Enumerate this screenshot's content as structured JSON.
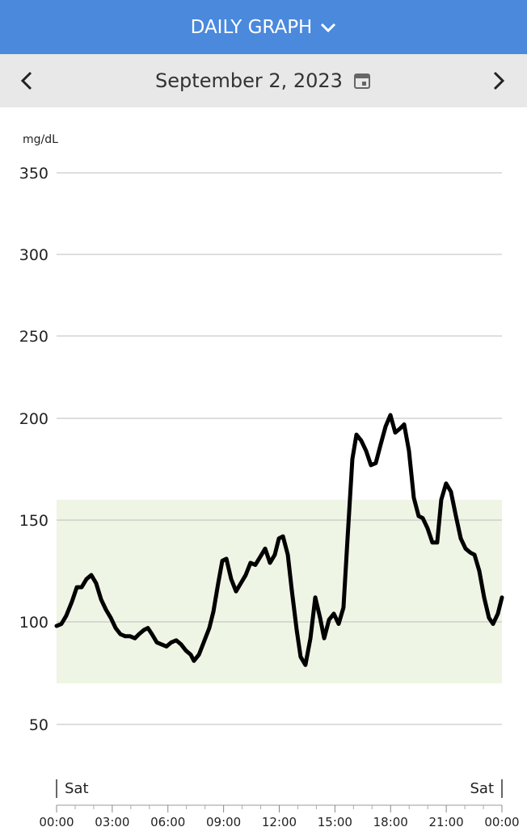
{
  "header": {
    "title": "DAILY GRAPH",
    "date": "September 2, 2023"
  },
  "chart_data": {
    "type": "line",
    "y_label": "mg/dL",
    "day_labels": [
      "Sat",
      "Sat"
    ],
    "target_range": [
      70,
      160
    ],
    "target_color": "#eef5e4",
    "grid": true,
    "ylim": [
      50,
      350
    ],
    "yticks": [
      50,
      100,
      150,
      200,
      250,
      300,
      350
    ],
    "xlim": [
      0,
      24
    ],
    "xticks": [
      {
        "value": 0,
        "label": "00:00"
      },
      {
        "value": 3,
        "label": "03:00"
      },
      {
        "value": 6,
        "label": "06:00"
      },
      {
        "value": 9,
        "label": "09:00"
      },
      {
        "value": 12,
        "label": "12:00"
      },
      {
        "value": 15,
        "label": "15:00"
      },
      {
        "value": 18,
        "label": "18:00"
      },
      {
        "value": 21,
        "label": "21:00"
      },
      {
        "value": 24,
        "label": "00:00"
      }
    ],
    "x": [
      0,
      0.26,
      0.52,
      0.83,
      1.09,
      1.35,
      1.61,
      1.87,
      2.13,
      2.4,
      2.66,
      2.92,
      3.18,
      3.44,
      3.7,
      3.96,
      4.22,
      4.44,
      4.7,
      4.92,
      5.14,
      5.4,
      5.66,
      5.92,
      6.18,
      6.45,
      6.71,
      6.97,
      7.23,
      7.4,
      7.67,
      7.93,
      8.23,
      8.45,
      8.71,
      8.93,
      9.15,
      9.41,
      9.67,
      9.93,
      10.19,
      10.45,
      10.71,
      10.98,
      11.24,
      11.5,
      11.76,
      11.98,
      12.2,
      12.46,
      12.67,
      12.94,
      13.15,
      13.41,
      13.68,
      13.94,
      14.2,
      14.42,
      14.68,
      14.94,
      15.2,
      15.46,
      15.68,
      15.94,
      16.16,
      16.42,
      16.68,
      16.94,
      17.2,
      17.46,
      17.73,
      17.99,
      18.25,
      18.51,
      18.73,
      18.99,
      19.25,
      19.51,
      19.73,
      19.99,
      20.25,
      20.51,
      20.73,
      20.99,
      21.25,
      21.52,
      21.78,
      22.04,
      22.3,
      22.52,
      22.78,
      23.04,
      23.3,
      23.52,
      23.78,
      24
    ],
    "series": [
      {
        "color": "#000000",
        "values": [
          98,
          99,
          103,
          110,
          117,
          117,
          121,
          123,
          119,
          111,
          106,
          102,
          97,
          94,
          93,
          93,
          92,
          94,
          96,
          97,
          94,
          90,
          89,
          88,
          90,
          91,
          89,
          86,
          84,
          81,
          84,
          90,
          97,
          105,
          119,
          130,
          131,
          121,
          115,
          119,
          123,
          129,
          128,
          132,
          136,
          129,
          133,
          141,
          142,
          133,
          116,
          96,
          83,
          79,
          92,
          112,
          102,
          92,
          101,
          104,
          99,
          107,
          141,
          180,
          192,
          189,
          184,
          177,
          178,
          187,
          196,
          202,
          193,
          195,
          197,
          184,
          161,
          152,
          151,
          146,
          139,
          139,
          160,
          168,
          164,
          152,
          141,
          136,
          134,
          133,
          125,
          112,
          102,
          99,
          104,
          112
        ]
      }
    ]
  }
}
